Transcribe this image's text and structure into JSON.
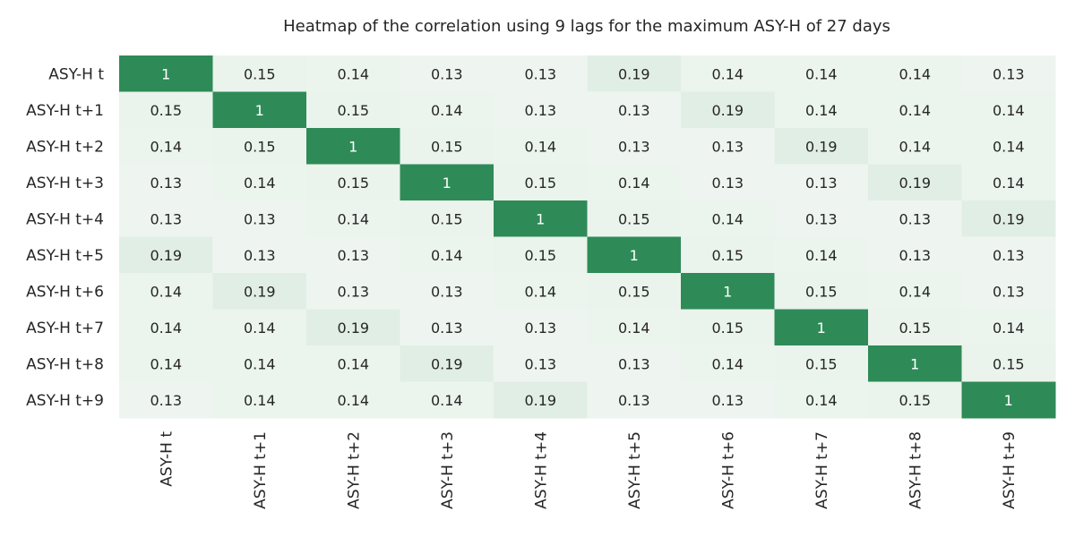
{
  "chart_data": {
    "type": "heatmap",
    "title": "Heatmap of the correlation using 9 lags for the maximum ASY-H of 27 days",
    "xlabel": "",
    "ylabel": "",
    "row_labels": [
      "ASY-H t",
      "ASY-H t+1",
      "ASY-H t+2",
      "ASY-H t+3",
      "ASY-H t+4",
      "ASY-H t+5",
      "ASY-H t+6",
      "ASY-H t+7",
      "ASY-H t+8",
      "ASY-H t+9"
    ],
    "col_labels": [
      "ASY-H t",
      "ASY-H t+1",
      "ASY-H t+2",
      "ASY-H t+3",
      "ASY-H t+4",
      "ASY-H t+5",
      "ASY-H t+6",
      "ASY-H t+7",
      "ASY-H t+8",
      "ASY-H t+9"
    ],
    "values": [
      [
        1,
        0.15,
        0.14,
        0.13,
        0.13,
        0.19,
        0.14,
        0.14,
        0.14,
        0.13
      ],
      [
        0.15,
        1,
        0.15,
        0.14,
        0.13,
        0.13,
        0.19,
        0.14,
        0.14,
        0.14
      ],
      [
        0.14,
        0.15,
        1,
        0.15,
        0.14,
        0.13,
        0.13,
        0.19,
        0.14,
        0.14
      ],
      [
        0.13,
        0.14,
        0.15,
        1,
        0.15,
        0.14,
        0.13,
        0.13,
        0.19,
        0.14
      ],
      [
        0.13,
        0.13,
        0.14,
        0.15,
        1,
        0.15,
        0.14,
        0.13,
        0.13,
        0.19
      ],
      [
        0.19,
        0.13,
        0.13,
        0.14,
        0.15,
        1,
        0.15,
        0.14,
        0.13,
        0.13
      ],
      [
        0.14,
        0.19,
        0.13,
        0.13,
        0.14,
        0.15,
        1,
        0.15,
        0.14,
        0.13
      ],
      [
        0.14,
        0.14,
        0.19,
        0.13,
        0.13,
        0.14,
        0.15,
        1,
        0.15,
        0.14
      ],
      [
        0.14,
        0.14,
        0.14,
        0.19,
        0.13,
        0.13,
        0.14,
        0.15,
        1,
        0.15
      ],
      [
        0.13,
        0.14,
        0.14,
        0.14,
        0.19,
        0.13,
        0.13,
        0.14,
        0.15,
        1
      ]
    ],
    "colormap": {
      "low": "#eef5f0",
      "high": "#2e8b57"
    },
    "value_range": [
      0.13,
      1
    ],
    "annotations": true,
    "colorbar": false,
    "grid": false,
    "legend": "none"
  }
}
